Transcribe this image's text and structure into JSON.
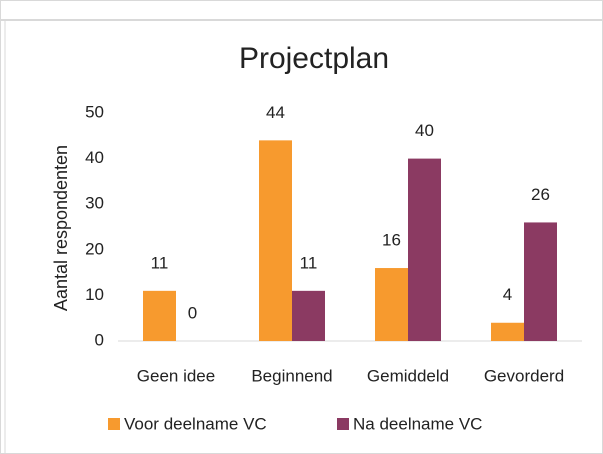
{
  "chart_data": {
    "type": "bar",
    "title": "Projectplan",
    "y_label": "Aantal respondenten",
    "categories": [
      "Geen idee",
      "Beginnend",
      "Gemiddeld",
      "Gevorderd"
    ],
    "series": [
      {
        "name": "Voor deelname VC",
        "color": "#f79a2e",
        "values": [
          11,
          44,
          16,
          4
        ]
      },
      {
        "name": "Na deelname VC",
        "color": "#8b3a62",
        "values": [
          0,
          11,
          40,
          26
        ]
      }
    ],
    "ylim": [
      0,
      50
    ],
    "yticks": [
      0,
      10,
      20,
      30,
      40,
      50
    ],
    "grid": false,
    "legend": "bottom"
  }
}
